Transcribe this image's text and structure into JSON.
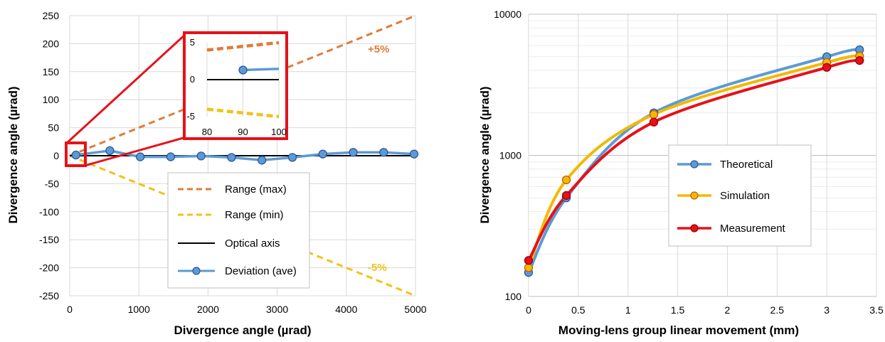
{
  "chart_data": [
    {
      "type": "line",
      "xlabel": "Divergence angle (µrad)",
      "ylabel": "Divergence angle (µrad)",
      "xlim": [
        0,
        5000
      ],
      "ylim": [
        -250,
        250
      ],
      "x_ticks": [
        "0",
        "1000",
        "2000",
        "3000",
        "4000",
        "5000"
      ],
      "y_ticks": [
        "250",
        "200",
        "150",
        "100",
        "50",
        "0",
        "-50",
        "-100",
        "-150",
        "-200",
        "-250"
      ],
      "grid": true,
      "legend_position": "bottom-center",
      "series": [
        {
          "name": "Range (max)",
          "color": "#E07B39",
          "style": "dashed",
          "x": [
            0,
            5000
          ],
          "y": [
            0,
            250
          ]
        },
        {
          "name": "Range (min)",
          "color": "#F2C21B",
          "style": "dashed",
          "x": [
            0,
            5000
          ],
          "y": [
            0,
            -250
          ]
        },
        {
          "name": "Optical axis",
          "color": "#000000",
          "style": "solid",
          "x": [
            0,
            5000
          ],
          "y": [
            0,
            0
          ]
        },
        {
          "name": "Deviation (ave)",
          "color": "#5B9BD5",
          "style": "solid-marker",
          "x": [
            90,
            580,
            1020,
            1460,
            1900,
            2340,
            2780,
            3220,
            3660,
            4100,
            4540,
            4980
          ],
          "y": [
            1.3,
            9,
            -2,
            -2,
            -0.5,
            -3,
            -8,
            -3,
            3,
            6,
            6,
            3
          ]
        }
      ],
      "annotations": [
        "+5%",
        "-5%"
      ],
      "annotation_colors": [
        "#E07B39",
        "#F2C21B"
      ],
      "inset": {
        "xlim": [
          80,
          100
        ],
        "ylim": [
          -5,
          5
        ],
        "x_ticks": [
          "80",
          "90",
          "100"
        ],
        "y_ticks": [
          "5",
          "0",
          "-5"
        ],
        "highlight_color": "#E8101A"
      }
    },
    {
      "type": "line",
      "xlabel": "Moving-lens group linear movement (mm)",
      "ylabel": "Divergence angle (µrad)",
      "xlim": [
        0,
        3.5
      ],
      "ylim": [
        100,
        10000
      ],
      "log_y": true,
      "x_ticks": [
        "0",
        "0.5",
        "1",
        "1.5",
        "2",
        "2.5",
        "3",
        "3.5"
      ],
      "y_ticks": [
        "10000",
        "1000",
        "100"
      ],
      "grid": true,
      "legend_position": "center-right",
      "series": [
        {
          "name": "Theoretical",
          "color": "#5B9BD5",
          "x": [
            0,
            0.38,
            1.26,
            3.0,
            3.33
          ],
          "y": [
            148,
            500,
            2000,
            5000,
            5600
          ]
        },
        {
          "name": "Simulation",
          "color": "#F2B900",
          "x": [
            0,
            0.38,
            1.26,
            3.0,
            3.33
          ],
          "y": [
            160,
            670,
            1950,
            4550,
            5050
          ]
        },
        {
          "name": "Measurement",
          "color": "#E8101A",
          "x": [
            0,
            0.38,
            1.26,
            3.0,
            3.33
          ],
          "y": [
            180,
            520,
            1720,
            4200,
            4700
          ]
        }
      ]
    }
  ]
}
